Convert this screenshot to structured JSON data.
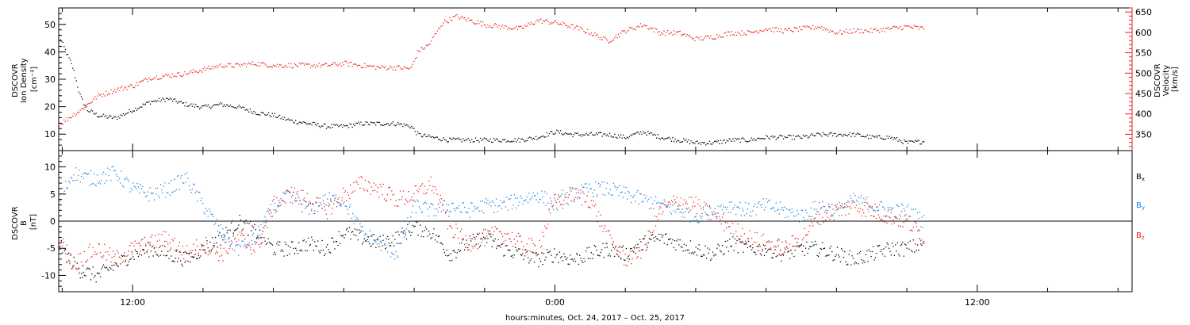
{
  "colors": {
    "density": "#000000",
    "velocity": "#e8231f",
    "bx": "#000000",
    "by": "#1e86e0",
    "bz": "#e8231f"
  },
  "xaxis": {
    "title": "hours:minutes, Oct. 24, 2017 – Oct. 25, 2017",
    "tick_labels": [
      "12:00",
      "0:00",
      "12:00"
    ]
  },
  "chart_data": [
    {
      "type": "scatter",
      "panel": "top",
      "xlabel": "hours:minutes, Oct. 24, 2017 – Oct. 25, 2017",
      "xlim_hours": [
        9.9,
        40.4
      ],
      "major_ticks_hours": [
        12,
        24,
        36
      ],
      "ylabel_left": [
        "DSCOVR",
        "Ion Density",
        "[cm⁻³]"
      ],
      "ylim_left": [
        4,
        56
      ],
      "yticks_left": [
        10,
        20,
        30,
        40,
        50
      ],
      "ylabel_right": [
        "DSCOVR",
        "Velocity",
        "[km/s]"
      ],
      "ylim_right": [
        310,
        660
      ],
      "yticks_right": [
        350,
        400,
        450,
        500,
        550,
        600,
        650
      ],
      "series": [
        {
          "key": "density",
          "axis": "left",
          "x": [
            9.9,
            10.1,
            10.3,
            10.5,
            10.7,
            11.0,
            11.5,
            12.0,
            12.5,
            13.0,
            13.5,
            14.0,
            14.5,
            15.0,
            15.5,
            16.0,
            16.5,
            17.0,
            17.5,
            18.0,
            18.5,
            19.0,
            19.5,
            19.9,
            20.1,
            20.5,
            21.0,
            21.5,
            22.0,
            22.5,
            23.0,
            23.5,
            24.0,
            24.5,
            25.0,
            25.5,
            26.0,
            26.5,
            27.0,
            27.5,
            28.0,
            28.5,
            29.0,
            29.5,
            30.0,
            30.5,
            31.0,
            31.5,
            32.0,
            32.5,
            33.0,
            33.5,
            34.0,
            34.5
          ],
          "y": [
            46,
            40,
            34,
            24,
            19,
            17,
            16,
            19,
            22,
            23,
            21,
            20,
            21,
            20,
            18,
            17,
            15,
            14,
            13,
            13,
            14,
            14,
            14,
            13,
            10,
            9,
            8,
            8,
            8,
            8,
            8,
            9,
            11,
            10,
            10,
            10,
            9,
            11,
            9,
            8,
            7,
            7,
            8,
            8,
            9,
            9,
            9,
            10,
            10,
            10,
            9,
            9,
            7,
            7.5
          ]
        },
        {
          "key": "velocity",
          "axis": "right",
          "x": [
            9.9,
            10.5,
            11.0,
            11.5,
            12.0,
            12.5,
            13.0,
            13.5,
            14.0,
            14.5,
            15.0,
            15.5,
            16.0,
            16.5,
            17.0,
            17.5,
            18.0,
            18.5,
            19.0,
            19.5,
            19.9,
            20.1,
            20.4,
            20.8,
            21.2,
            21.6,
            22.0,
            22.5,
            23.0,
            23.5,
            24.0,
            24.5,
            25.0,
            25.5,
            26.0,
            26.5,
            27.0,
            27.5,
            28.0,
            28.5,
            29.0,
            29.5,
            30.0,
            30.5,
            31.0,
            31.5,
            32.0,
            32.5,
            33.0,
            33.5,
            34.0,
            34.5
          ],
          "y": [
            375,
            410,
            445,
            460,
            470,
            490,
            495,
            500,
            510,
            520,
            520,
            525,
            520,
            520,
            520,
            520,
            525,
            520,
            515,
            515,
            512,
            555,
            570,
            625,
            640,
            630,
            620,
            615,
            610,
            630,
            625,
            615,
            600,
            580,
            605,
            620,
            600,
            600,
            585,
            590,
            600,
            600,
            610,
            605,
            610,
            615,
            600,
            605,
            605,
            610,
            615,
            610
          ]
        }
      ]
    },
    {
      "type": "scatter",
      "panel": "bottom",
      "xlim_hours": [
        9.9,
        40.4
      ],
      "ylabel": [
        "DSCOVR",
        "B",
        "[nT]"
      ],
      "ylim": [
        -13,
        13
      ],
      "yticks": [
        -10,
        -5,
        0,
        5,
        10
      ],
      "zero_line": true,
      "legend": [
        "B",
        "B",
        "B"
      ],
      "legend_subscripts": [
        "x",
        "y",
        "z"
      ],
      "legend_placement": "right",
      "series": [
        {
          "key": "bx",
          "x": [
            9.9,
            10.2,
            10.5,
            11.0,
            11.5,
            12.0,
            12.5,
            13.0,
            13.5,
            14.0,
            14.5,
            15.0,
            15.5,
            16.0,
            16.5,
            17.0,
            17.5,
            18.0,
            18.5,
            19.0,
            19.5,
            20.0,
            20.5,
            21.0,
            21.5,
            22.0,
            22.5,
            23.0,
            23.5,
            24.0,
            24.5,
            25.0,
            25.5,
            26.0,
            26.5,
            27.0,
            27.5,
            28.0,
            28.5,
            29.0,
            29.5,
            30.0,
            30.5,
            31.0,
            31.5,
            32.0,
            32.5,
            33.0,
            33.5,
            34.0,
            34.5
          ],
          "y": [
            -4,
            -7,
            -9,
            -10,
            -8,
            -6,
            -5,
            -6,
            -7,
            -5,
            -3,
            0,
            -2,
            -5,
            -5,
            -4,
            -5,
            -2,
            -3,
            -4,
            -3,
            -1,
            -2,
            -6,
            -4,
            -3,
            -5,
            -6,
            -7,
            -6,
            -7,
            -6,
            -5,
            -6,
            -4,
            -3,
            -4,
            -5,
            -6,
            -4,
            -5,
            -5,
            -6,
            -5,
            -5,
            -6,
            -7,
            -6,
            -5,
            -5,
            -4
          ]
        },
        {
          "key": "by",
          "x": [
            9.9,
            10.3,
            10.7,
            11.0,
            11.5,
            12.0,
            12.5,
            13.0,
            13.5,
            14.0,
            14.5,
            15.0,
            15.5,
            16.0,
            16.5,
            17.0,
            17.5,
            18.0,
            18.5,
            19.0,
            19.5,
            20.0,
            20.5,
            21.0,
            21.5,
            22.0,
            22.5,
            23.0,
            23.5,
            24.0,
            24.5,
            25.0,
            25.5,
            26.0,
            26.5,
            27.0,
            27.5,
            28.0,
            28.5,
            29.0,
            29.5,
            30.0,
            30.5,
            31.0,
            31.5,
            32.0,
            32.5,
            33.0,
            33.5,
            34.0,
            34.5
          ],
          "y": [
            4,
            9,
            8,
            8,
            9,
            6,
            5,
            6,
            8,
            3,
            -2,
            -5,
            -3,
            3,
            5,
            2,
            4,
            4,
            -2,
            -4,
            -6,
            3,
            2,
            3,
            2,
            3,
            3,
            4,
            5,
            3,
            5,
            6,
            6,
            5,
            4,
            3,
            2,
            1,
            2,
            3,
            2,
            3,
            2,
            1,
            3,
            2,
            4,
            3,
            2,
            2,
            0
          ]
        },
        {
          "key": "bz",
          "x": [
            9.9,
            10.3,
            10.7,
            11.0,
            11.5,
            12.0,
            12.5,
            13.0,
            13.5,
            14.0,
            14.5,
            15.0,
            15.5,
            16.0,
            16.5,
            17.0,
            17.5,
            18.0,
            18.5,
            19.0,
            19.5,
            20.0,
            20.5,
            21.0,
            21.5,
            22.0,
            22.5,
            23.0,
            23.5,
            24.0,
            24.5,
            25.0,
            25.5,
            26.0,
            26.5,
            27.0,
            27.5,
            28.0,
            28.5,
            29.0,
            29.5,
            30.0,
            30.5,
            31.0,
            31.5,
            32.0,
            32.5,
            33.0,
            33.5,
            34.0,
            34.5
          ],
          "y": [
            -3,
            -8,
            -6,
            -5,
            -7,
            -5,
            -4,
            -3,
            -6,
            -4,
            -6,
            -3,
            -5,
            3,
            5,
            4,
            2,
            5,
            7,
            6,
            4,
            5,
            7,
            -1,
            -4,
            -3,
            -2,
            -4,
            -5,
            4,
            5,
            4,
            -3,
            -7,
            -5,
            2,
            4,
            3,
            1,
            -1,
            -3,
            -4,
            -5,
            -3,
            1,
            2,
            3,
            2,
            1,
            0,
            -3
          ]
        }
      ]
    }
  ]
}
